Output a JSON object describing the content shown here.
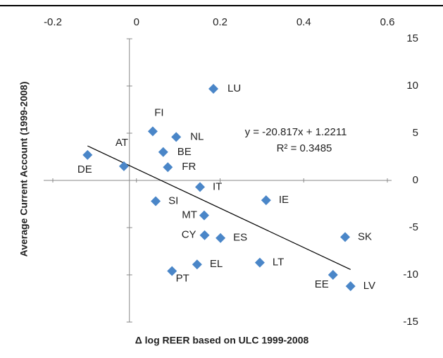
{
  "chart_data": {
    "type": "scatter",
    "x_label": "Δ log REER based on ULC 1999-2008",
    "y_label": "Average Current Account (1999-2008)",
    "xlim": [
      -0.2,
      0.6
    ],
    "xticks": [
      -0.2,
      0,
      0.2,
      0.4,
      0.6
    ],
    "ylim": [
      -15,
      15
    ],
    "yticks": [
      -15,
      -10,
      -5,
      0,
      5,
      10,
      15
    ],
    "color": "#4a86c8",
    "series": [
      {
        "name": null,
        "color": "#4a86c8",
        "labels": [
          "LU",
          "FI",
          "NL",
          "BE",
          "FR",
          "AT",
          "DE",
          "IT",
          "SI",
          "IE",
          "MT",
          "CY",
          "ES",
          "SK",
          "LT",
          "EL",
          "PT",
          "EE",
          "LV"
        ],
        "x": [
          0.184,
          0.039,
          0.095,
          0.064,
          0.075,
          -0.03,
          -0.117,
          0.152,
          0.046,
          0.31,
          0.162,
          0.163,
          0.201,
          0.499,
          0.295,
          0.145,
          0.085,
          0.47,
          0.512
        ],
        "values": [
          9.7,
          5.2,
          4.6,
          3.0,
          1.4,
          1.5,
          2.7,
          -0.7,
          -2.2,
          -2.1,
          -3.7,
          -5.8,
          -6.1,
          -6.0,
          -8.7,
          -8.9,
          -9.6,
          -10.0,
          -11.2
        ]
      }
    ],
    "trendline": {
      "slope": -20.817,
      "intercept": 1.2211,
      "x_range": [
        -0.117,
        0.512
      ]
    },
    "annotations": [
      "y = -20.817x + 1.2211",
      "R² = 0.3485"
    ]
  }
}
